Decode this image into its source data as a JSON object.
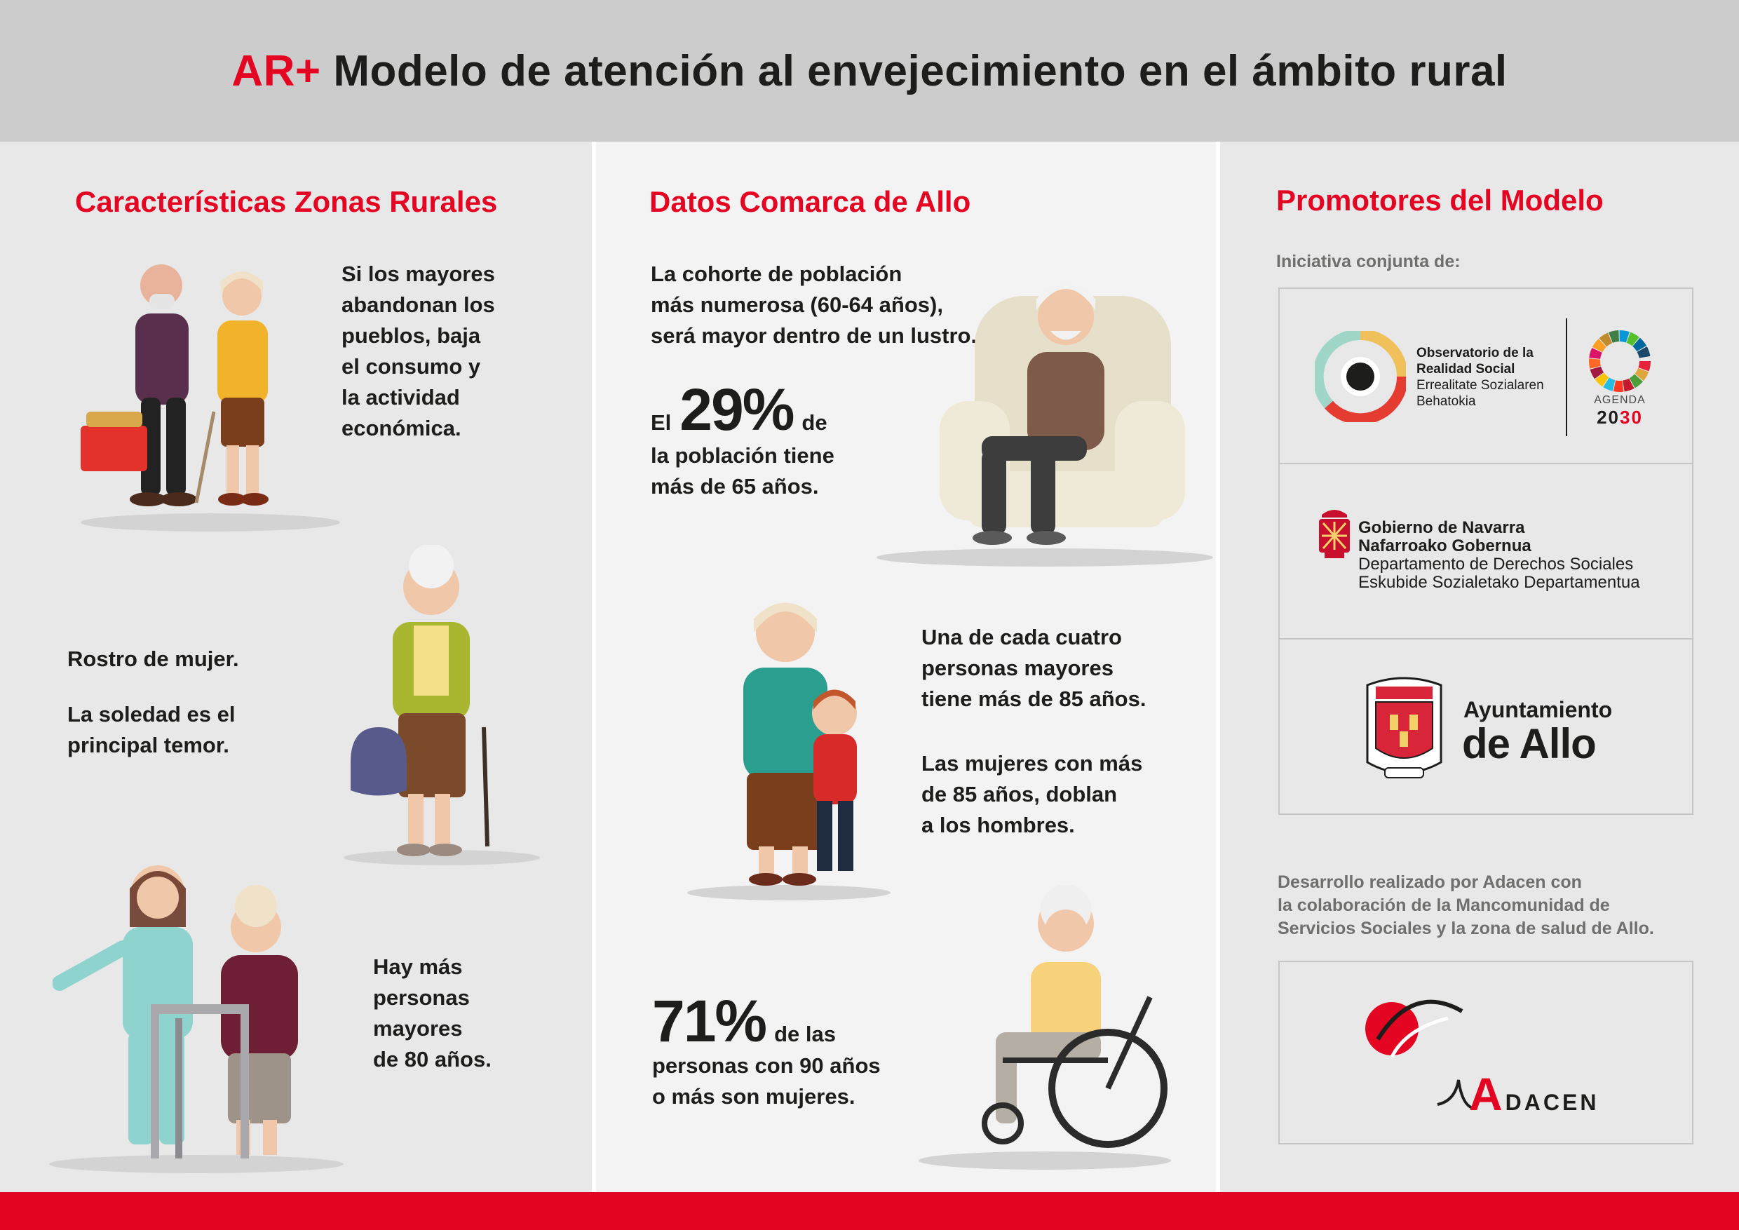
{
  "header": {
    "brand": "AR+",
    "title": "Modelo de atención al envejecimiento en el ámbito rural"
  },
  "left": {
    "title": "Características Zonas Rurales",
    "block1": [
      "Si los mayores",
      "abandonan los",
      "pueblos, baja",
      "el consumo y",
      "la actividad",
      "económica."
    ],
    "block2_line1": "Rostro de mujer.",
    "block2_lines": [
      "La soledad es el",
      "principal temor."
    ],
    "block3": [
      "Hay más",
      "personas",
      "mayores",
      "de 80 años."
    ]
  },
  "middle": {
    "title": "Datos Comarca de Allo",
    "cohort": [
      "La cohorte de población",
      "más numerosa (60-64 años),",
      "será mayor dentro de un lustro."
    ],
    "pct29": {
      "prefix": "El",
      "value": "29%",
      "suffix": "de",
      "lines": [
        "la población tiene",
        "más de 65 años."
      ]
    },
    "quarter": [
      "Una de cada cuatro",
      "personas mayores",
      "tiene más de 85 años."
    ],
    "women85": [
      "Las mujeres con más",
      "de 85 años, doblan",
      "a los hombres."
    ],
    "pct71": {
      "value": "71%",
      "suffix": "de las",
      "lines": [
        "personas con 90 años",
        "o más son mujeres."
      ]
    }
  },
  "right": {
    "title": "Promotores del Modelo",
    "initiative": "Iniciativa conjunta de:",
    "observatorio": [
      "Observatorio de la",
      "Realidad Social",
      "Errealitate Sozialaren",
      "Behatokia"
    ],
    "agenda": {
      "word": "AGENDA",
      "year_a": "20",
      "year_b": "30"
    },
    "navarra": [
      "Gobierno de Navarra",
      "Nafarroako Gobernua",
      "Departamento de Derechos Sociales",
      "Eskubide Sozialetako Departamentua"
    ],
    "allo": {
      "line1": "Ayuntamiento",
      "line2": "de Allo"
    },
    "development": [
      "Desarrollo realizado por Adacen con",
      "la colaboración de la Mancomunidad de",
      "Servicios Sociales y la zona de salud de Allo."
    ],
    "adacen": {
      "initial": "A",
      "rest": "DACEN"
    }
  },
  "colors": {
    "accent": "#e30521",
    "text": "#1d1d1b",
    "gray": "#6f6f6e"
  }
}
